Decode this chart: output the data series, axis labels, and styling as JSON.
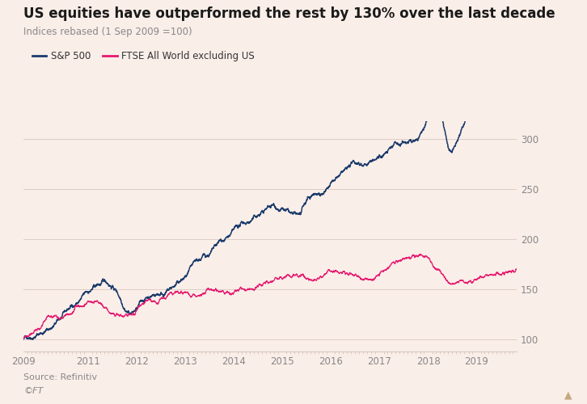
{
  "title": "US equities have outperformed the rest by 130% over the last decade",
  "subtitle": "Indices rebased (1 Sep 2009 =100)",
  "legend": [
    "S&P 500",
    "FTSE All World excluding US"
  ],
  "sp500_color": "#1a3a6b",
  "ftse_color": "#e5186e",
  "background_color": "#faeee8",
  "grid_color": "#d8c8c0",
  "axis_color": "#888888",
  "text_color": "#333333",
  "source_text": "Source: Refinitiv",
  "copyright_text": "©FT",
  "ylim": [
    88,
    318
  ],
  "yticks": [
    100,
    150,
    200,
    250,
    300
  ],
  "xlabel_years": [
    "2009",
    "2011",
    "2012",
    "2013",
    "2014",
    "2015",
    "2016",
    "2017",
    "2018",
    "2019"
  ],
  "title_fontsize": 12,
  "subtitle_fontsize": 8.5,
  "legend_fontsize": 8.5,
  "tick_fontsize": 8.5
}
